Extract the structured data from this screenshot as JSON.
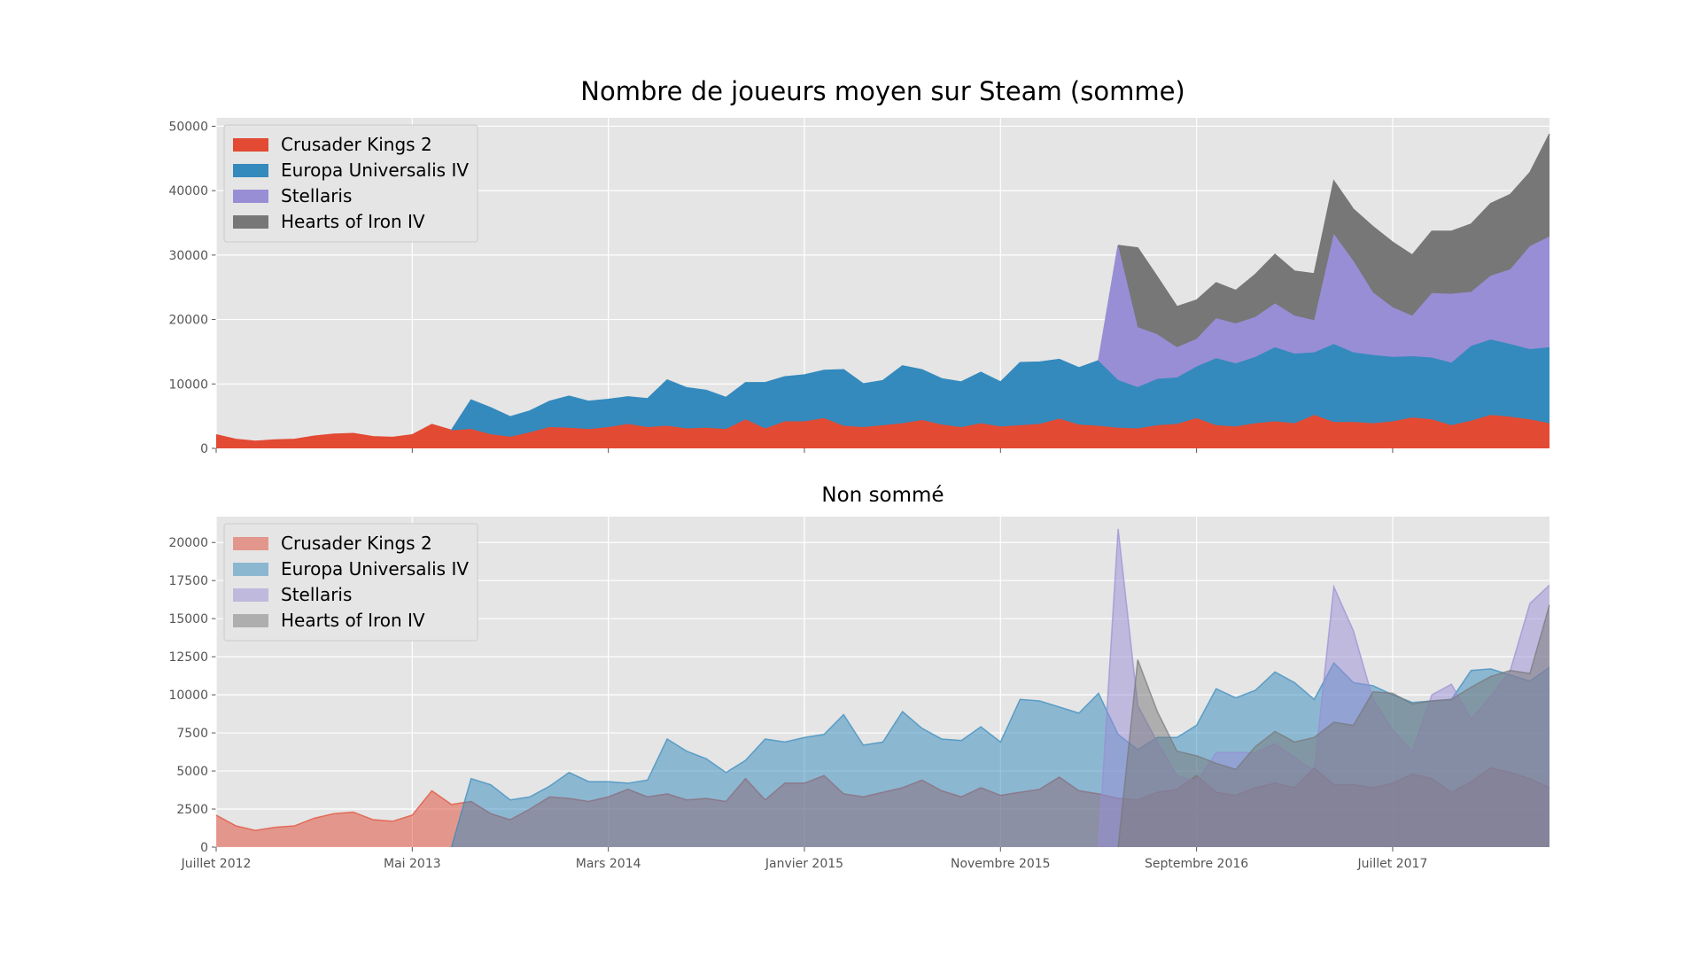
{
  "chart_data": [
    {
      "type": "area",
      "stacked": true,
      "title": "Nombre de joueurs moyen sur Steam (somme)",
      "ylim": [
        0,
        51300
      ],
      "yticks": [
        0,
        10000,
        20000,
        30000,
        40000,
        50000
      ],
      "grid": true,
      "legend": "upper left",
      "opacity": 1,
      "series": [
        {
          "name": "Crusader Kings 2",
          "color": "#E24A33",
          "values": [
            2100,
            1400,
            1100,
            1300,
            1400,
            1900,
            2200,
            2300,
            1800,
            1700,
            2100,
            3700,
            2800,
            3000,
            2200,
            1800,
            2500,
            3300,
            3200,
            3000,
            3300,
            3800,
            3300,
            3500,
            3100,
            3200,
            3000,
            4500,
            3100,
            4200,
            4200,
            4700,
            3500,
            3300,
            3600,
            3900,
            4400,
            3700,
            3300,
            3900,
            3400,
            3600,
            3800,
            4600,
            3700,
            3500,
            3200,
            3100,
            3600,
            3800,
            4700,
            3600,
            3400,
            3900,
            4200,
            3900,
            5200,
            4100,
            4100,
            3900,
            4200,
            4800,
            4500,
            3600,
            4300,
            5200,
            4900,
            4500,
            3900
          ]
        },
        {
          "name": "Europa Universalis IV",
          "color": "#348ABD",
          "values": [
            null,
            null,
            null,
            null,
            null,
            null,
            null,
            null,
            null,
            null,
            null,
            null,
            0,
            4500,
            4100,
            3100,
            3300,
            4000,
            4900,
            4300,
            4300,
            4200,
            4400,
            7100,
            6300,
            5800,
            4900,
            5700,
            7100,
            6900,
            7200,
            7400,
            8700,
            6700,
            6900,
            8900,
            7800,
            7100,
            7000,
            7900,
            6900,
            9700,
            9600,
            9200,
            8800,
            10100,
            7400,
            6400,
            7200,
            7200,
            8000,
            10400,
            9800,
            10300,
            11500,
            10800,
            9700,
            12100,
            10800,
            10600,
            10000,
            9500,
            9600,
            9700,
            11600,
            11700,
            11300,
            10900,
            11800
          ]
        },
        {
          "name": "Stellaris",
          "color": "#988ED5",
          "values": [
            null,
            null,
            null,
            null,
            null,
            null,
            null,
            null,
            null,
            null,
            null,
            null,
            null,
            null,
            null,
            null,
            null,
            null,
            null,
            null,
            null,
            null,
            null,
            null,
            null,
            null,
            null,
            null,
            null,
            null,
            null,
            null,
            null,
            null,
            null,
            null,
            null,
            null,
            null,
            null,
            null,
            null,
            null,
            null,
            null,
            0,
            20900,
            9300,
            6900,
            4700,
            4300,
            6200,
            6200,
            6200,
            6800,
            5900,
            5000,
            17100,
            14200,
            9700,
            7700,
            6300,
            10000,
            10700,
            8400,
            9900,
            11600,
            16000,
            17200
          ]
        },
        {
          "name": "Hearts of Iron IV",
          "color": "#777777",
          "values": [
            null,
            null,
            null,
            null,
            null,
            null,
            null,
            null,
            null,
            null,
            null,
            null,
            null,
            null,
            null,
            null,
            null,
            null,
            null,
            null,
            null,
            null,
            null,
            null,
            null,
            null,
            null,
            null,
            null,
            null,
            null,
            null,
            null,
            null,
            null,
            null,
            null,
            null,
            null,
            null,
            null,
            null,
            null,
            null,
            null,
            null,
            0,
            12300,
            8900,
            6300,
            6000,
            5500,
            5100,
            6600,
            7600,
            6900,
            7200,
            8200,
            8000,
            10200,
            10100,
            9400,
            9600,
            9700,
            10500,
            11200,
            11600,
            11400,
            15900
          ]
        }
      ]
    },
    {
      "type": "area",
      "stacked": false,
      "title": "Non sommé",
      "categories": [
        "Juillet 2012",
        null,
        null,
        null,
        null,
        null,
        null,
        null,
        null,
        null,
        "Mai 2013",
        null,
        null,
        null,
        null,
        null,
        null,
        null,
        null,
        null,
        "Mars 2014",
        null,
        null,
        null,
        null,
        null,
        null,
        null,
        null,
        null,
        "Janvier 2015",
        null,
        null,
        null,
        null,
        null,
        null,
        null,
        null,
        null,
        "Novembre 2015",
        null,
        null,
        null,
        null,
        null,
        null,
        null,
        null,
        null,
        "Septembre 2016",
        null,
        null,
        null,
        null,
        null,
        null,
        null,
        null,
        null,
        "Juillet 2017",
        null,
        null,
        null,
        null,
        null,
        null,
        null,
        null
      ],
      "ylim": [
        0,
        21700
      ],
      "yticks": [
        0,
        2500,
        5000,
        7500,
        10000,
        12500,
        15000,
        17500,
        20000
      ],
      "grid": true,
      "legend": "upper left",
      "opacity": 0.5,
      "series": [
        {
          "name": "Crusader Kings 2",
          "color": "#E24A33",
          "values": [
            2100,
            1400,
            1100,
            1300,
            1400,
            1900,
            2200,
            2300,
            1800,
            1700,
            2100,
            3700,
            2800,
            3000,
            2200,
            1800,
            2500,
            3300,
            3200,
            3000,
            3300,
            3800,
            3300,
            3500,
            3100,
            3200,
            3000,
            4500,
            3100,
            4200,
            4200,
            4700,
            3500,
            3300,
            3600,
            3900,
            4400,
            3700,
            3300,
            3900,
            3400,
            3600,
            3800,
            4600,
            3700,
            3500,
            3200,
            3100,
            3600,
            3800,
            4700,
            3600,
            3400,
            3900,
            4200,
            3900,
            5200,
            4100,
            4100,
            3900,
            4200,
            4800,
            4500,
            3600,
            4300,
            5200,
            4900,
            4500,
            3900
          ]
        },
        {
          "name": "Europa Universalis IV",
          "color": "#348ABD",
          "values": [
            null,
            null,
            null,
            null,
            null,
            null,
            null,
            null,
            null,
            null,
            null,
            null,
            0,
            4500,
            4100,
            3100,
            3300,
            4000,
            4900,
            4300,
            4300,
            4200,
            4400,
            7100,
            6300,
            5800,
            4900,
            5700,
            7100,
            6900,
            7200,
            7400,
            8700,
            6700,
            6900,
            8900,
            7800,
            7100,
            7000,
            7900,
            6900,
            9700,
            9600,
            9200,
            8800,
            10100,
            7400,
            6400,
            7200,
            7200,
            8000,
            10400,
            9800,
            10300,
            11500,
            10800,
            9700,
            12100,
            10800,
            10600,
            10000,
            9500,
            9600,
            9700,
            11600,
            11700,
            11300,
            10900,
            11800
          ]
        },
        {
          "name": "Stellaris",
          "color": "#988ED5",
          "values": [
            null,
            null,
            null,
            null,
            null,
            null,
            null,
            null,
            null,
            null,
            null,
            null,
            null,
            null,
            null,
            null,
            null,
            null,
            null,
            null,
            null,
            null,
            null,
            null,
            null,
            null,
            null,
            null,
            null,
            null,
            null,
            null,
            null,
            null,
            null,
            null,
            null,
            null,
            null,
            null,
            null,
            null,
            null,
            null,
            null,
            0,
            20900,
            9300,
            6900,
            4700,
            4300,
            6200,
            6200,
            6200,
            6800,
            5900,
            5000,
            17100,
            14200,
            9700,
            7700,
            6300,
            10000,
            10700,
            8400,
            9900,
            11600,
            16000,
            17200
          ]
        },
        {
          "name": "Hearts of Iron IV",
          "color": "#777777",
          "values": [
            null,
            null,
            null,
            null,
            null,
            null,
            null,
            null,
            null,
            null,
            null,
            null,
            null,
            null,
            null,
            null,
            null,
            null,
            null,
            null,
            null,
            null,
            null,
            null,
            null,
            null,
            null,
            null,
            null,
            null,
            null,
            null,
            null,
            null,
            null,
            null,
            null,
            null,
            null,
            null,
            null,
            null,
            null,
            null,
            null,
            null,
            0,
            12300,
            8900,
            6300,
            6000,
            5500,
            5100,
            6600,
            7600,
            6900,
            7200,
            8200,
            8000,
            10200,
            10100,
            9400,
            9600,
            9700,
            10500,
            11200,
            11600,
            11400,
            15900
          ]
        }
      ]
    }
  ]
}
